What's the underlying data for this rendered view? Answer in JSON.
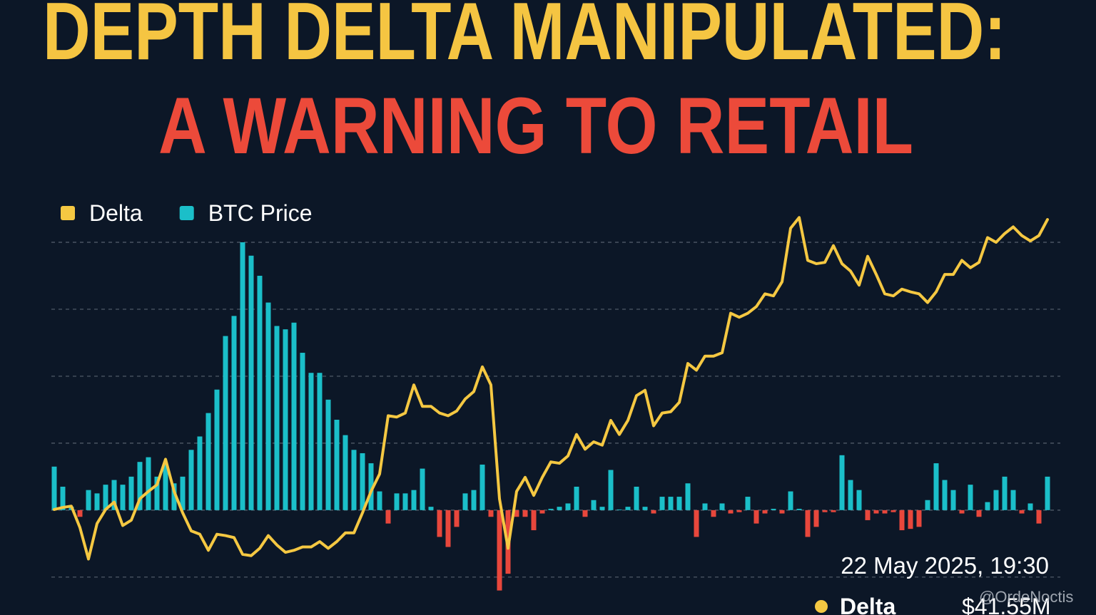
{
  "chart_data": {
    "type": "combo",
    "title": "DEPTH DELTA MANIPULATED:",
    "subtitle": "A WARNING TO RETAIL",
    "title_color": "#f5c542",
    "subtitle_color": "#ec4a3a",
    "ylim": [
      -1.3,
      4.5
    ],
    "yticks": [
      -1,
      0,
      1,
      2,
      3,
      4
    ],
    "grid": true,
    "legend": "top-left",
    "series": [
      {
        "name": "Delta",
        "type": "line",
        "color": "#f5c842",
        "values": [
          0.01,
          0.04,
          0.06,
          -0.26,
          -0.73,
          -0.2,
          0.01,
          0.12,
          -0.23,
          -0.15,
          0.17,
          0.28,
          0.38,
          0.76,
          0.28,
          -0.04,
          -0.31,
          -0.36,
          -0.6,
          -0.36,
          -0.38,
          -0.41,
          -0.66,
          -0.68,
          -0.57,
          -0.38,
          -0.52,
          -0.63,
          -0.6,
          -0.55,
          -0.55,
          -0.47,
          -0.57,
          -0.47,
          -0.34,
          -0.34,
          -0.04,
          0.28,
          0.54,
          1.41,
          1.39,
          1.45,
          1.87,
          1.55,
          1.55,
          1.45,
          1.41,
          1.48,
          1.66,
          1.77,
          2.14,
          1.87,
          0.17,
          -0.57,
          0.28,
          0.49,
          0.22,
          0.49,
          0.72,
          0.7,
          0.81,
          1.13,
          0.91,
          1.02,
          0.97,
          1.34,
          1.13,
          1.34,
          1.71,
          1.79,
          1.26,
          1.45,
          1.47,
          1.61,
          2.19,
          2.09,
          2.3,
          2.3,
          2.35,
          2.94,
          2.88,
          2.94,
          3.04,
          3.23,
          3.2,
          3.41,
          4.21,
          4.37,
          3.73,
          3.68,
          3.7,
          3.95,
          3.68,
          3.57,
          3.36,
          3.79,
          3.52,
          3.23,
          3.2,
          3.3,
          3.26,
          3.23,
          3.1,
          3.26,
          3.52,
          3.52,
          3.73,
          3.62,
          3.7,
          4.07,
          4.0,
          4.13,
          4.23,
          4.1,
          4.02,
          4.1,
          4.34
        ]
      },
      {
        "name": "BTC Price",
        "type": "bar",
        "color": "#1bbfc9",
        "negative_color": "#e8473c",
        "values": [
          0.65,
          0.35,
          0.05,
          -0.1,
          0.3,
          0.25,
          0.38,
          0.45,
          0.38,
          0.5,
          0.72,
          0.79,
          0.5,
          0.7,
          0.4,
          0.5,
          0.9,
          1.1,
          1.45,
          1.8,
          2.6,
          2.9,
          4.0,
          3.8,
          3.5,
          3.1,
          2.75,
          2.7,
          2.8,
          2.35,
          2.05,
          2.05,
          1.65,
          1.35,
          1.12,
          0.9,
          0.85,
          0.7,
          0.28,
          -0.2,
          0.25,
          0.25,
          0.3,
          0.62,
          0.05,
          -0.4,
          -0.55,
          -0.25,
          0.25,
          0.3,
          0.68,
          -0.1,
          -1.2,
          -0.95,
          -0.1,
          -0.1,
          -0.3,
          -0.05,
          0.02,
          0.05,
          0.1,
          0.35,
          -0.1,
          0.15,
          0.05,
          0.6,
          0.01,
          0.05,
          0.35,
          0.05,
          -0.05,
          0.2,
          0.2,
          0.2,
          0.4,
          -0.4,
          0.1,
          -0.1,
          0.1,
          -0.05,
          -0.03,
          0.2,
          -0.2,
          -0.05,
          0.02,
          -0.05,
          0.28,
          0.02,
          -0.4,
          -0.25,
          -0.03,
          -0.03,
          0.82,
          0.45,
          0.3,
          -0.15,
          -0.05,
          -0.05,
          -0.03,
          -0.3,
          -0.28,
          -0.25,
          0.15,
          0.7,
          0.45,
          0.3,
          -0.05,
          0.38,
          -0.1,
          0.12,
          0.3,
          0.5,
          0.3,
          -0.05,
          0.1,
          -0.2,
          0.5
        ]
      }
    ],
    "annotations": {
      "timestamp": "22 May 2025, 19:30",
      "tooltip_label": "Delta",
      "tooltip_value": "$41.55M",
      "watermark": "@OrdeNoctis"
    }
  }
}
